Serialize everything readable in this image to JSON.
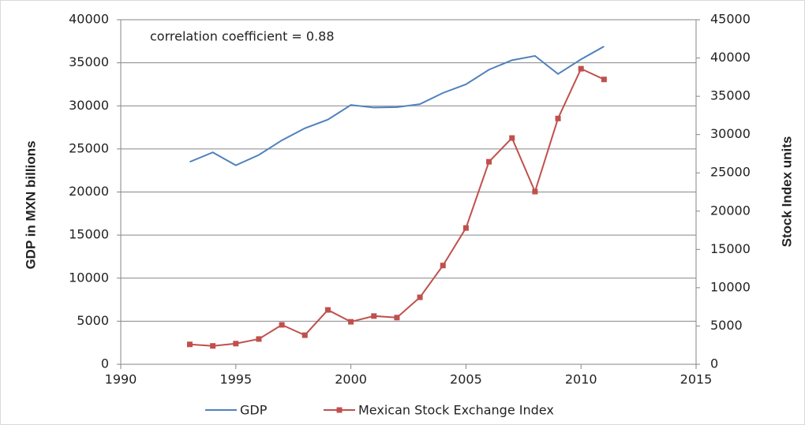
{
  "chart_data": {
    "type": "line",
    "annotation": "correlation coefficient = 0.88",
    "ylabel": "GDP in MXN billions",
    "y2label": "Stock Index units",
    "x": [
      1993,
      1994,
      1995,
      1996,
      1997,
      1998,
      1999,
      2000,
      2001,
      2002,
      2003,
      2004,
      2005,
      2006,
      2007,
      2008,
      2009,
      2010,
      2011
    ],
    "series": [
      {
        "name": "GDP",
        "color": "#4f81bd",
        "axis": "y",
        "marker": false,
        "values": [
          23500,
          24600,
          23100,
          24300,
          26000,
          27400,
          28400,
          30100,
          29800,
          29850,
          30200,
          31500,
          32500,
          34200,
          35300,
          35800,
          33700,
          35400,
          36900
        ]
      },
      {
        "name": "Mexican Stock Exchange Index",
        "color": "#c0504d",
        "axis": "y2",
        "marker": true,
        "values": [
          2600,
          2400,
          2700,
          3300,
          5150,
          3800,
          7100,
          5550,
          6300,
          6100,
          8750,
          12900,
          17800,
          26450,
          29550,
          22550,
          32100,
          38600,
          37200
        ]
      }
    ],
    "xlim": [
      1990,
      2015
    ],
    "xticks": [
      1990,
      1995,
      2000,
      2005,
      2010,
      2015
    ],
    "ylim": [
      0,
      40000
    ],
    "yticks": [
      0,
      5000,
      10000,
      15000,
      20000,
      25000,
      30000,
      35000,
      40000
    ],
    "y2lim": [
      0,
      45000
    ],
    "y2ticks": [
      0,
      5000,
      10000,
      15000,
      20000,
      25000,
      30000,
      35000,
      40000,
      45000
    ],
    "grid": true
  }
}
